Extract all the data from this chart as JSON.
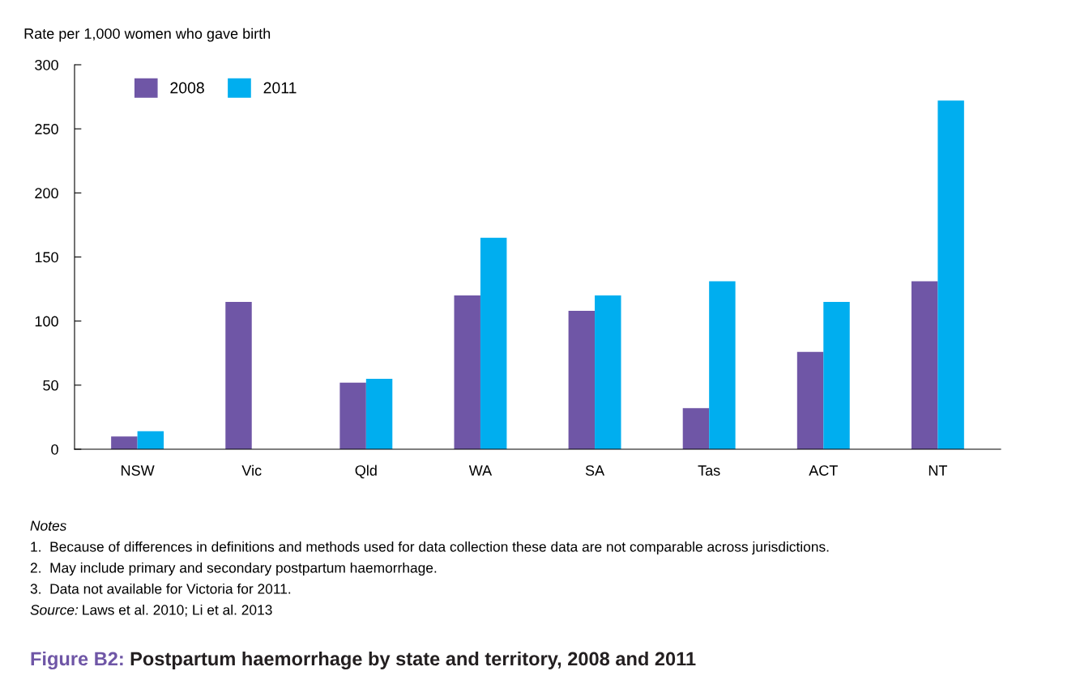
{
  "chart_data": {
    "type": "bar",
    "title": "Figure B2: Postpartum haemorrhage by state and territory, 2008 and 2011",
    "ylabel": "Rate per 1,000 women who gave birth",
    "categories": [
      "NSW",
      "Vic",
      "Qld",
      "WA",
      "SA",
      "Tas",
      "ACT",
      "NT"
    ],
    "series": [
      {
        "name": "2008",
        "color": "#6f56a6",
        "values": [
          10,
          115,
          52,
          120,
          108,
          32,
          76,
          131
        ]
      },
      {
        "name": "2011",
        "color": "#00aeef",
        "values": [
          14,
          null,
          55,
          165,
          120,
          131,
          115,
          272
        ]
      }
    ],
    "ylim": [
      0,
      300
    ],
    "yticks": [
      0,
      50,
      100,
      150,
      200,
      250,
      300
    ],
    "grid": false,
    "legend": "top left",
    "annotations": [
      "Notes",
      "1.  Because of differences in definitions and methods used for data collection these data are not comparable across jurisdictions.",
      "2.  May include primary and secondary postpartum haemorrhage.",
      "3.  Data not available for Victoria for 2011.",
      "Source: Laws et al. 2010; Li et al. 2013"
    ]
  }
}
